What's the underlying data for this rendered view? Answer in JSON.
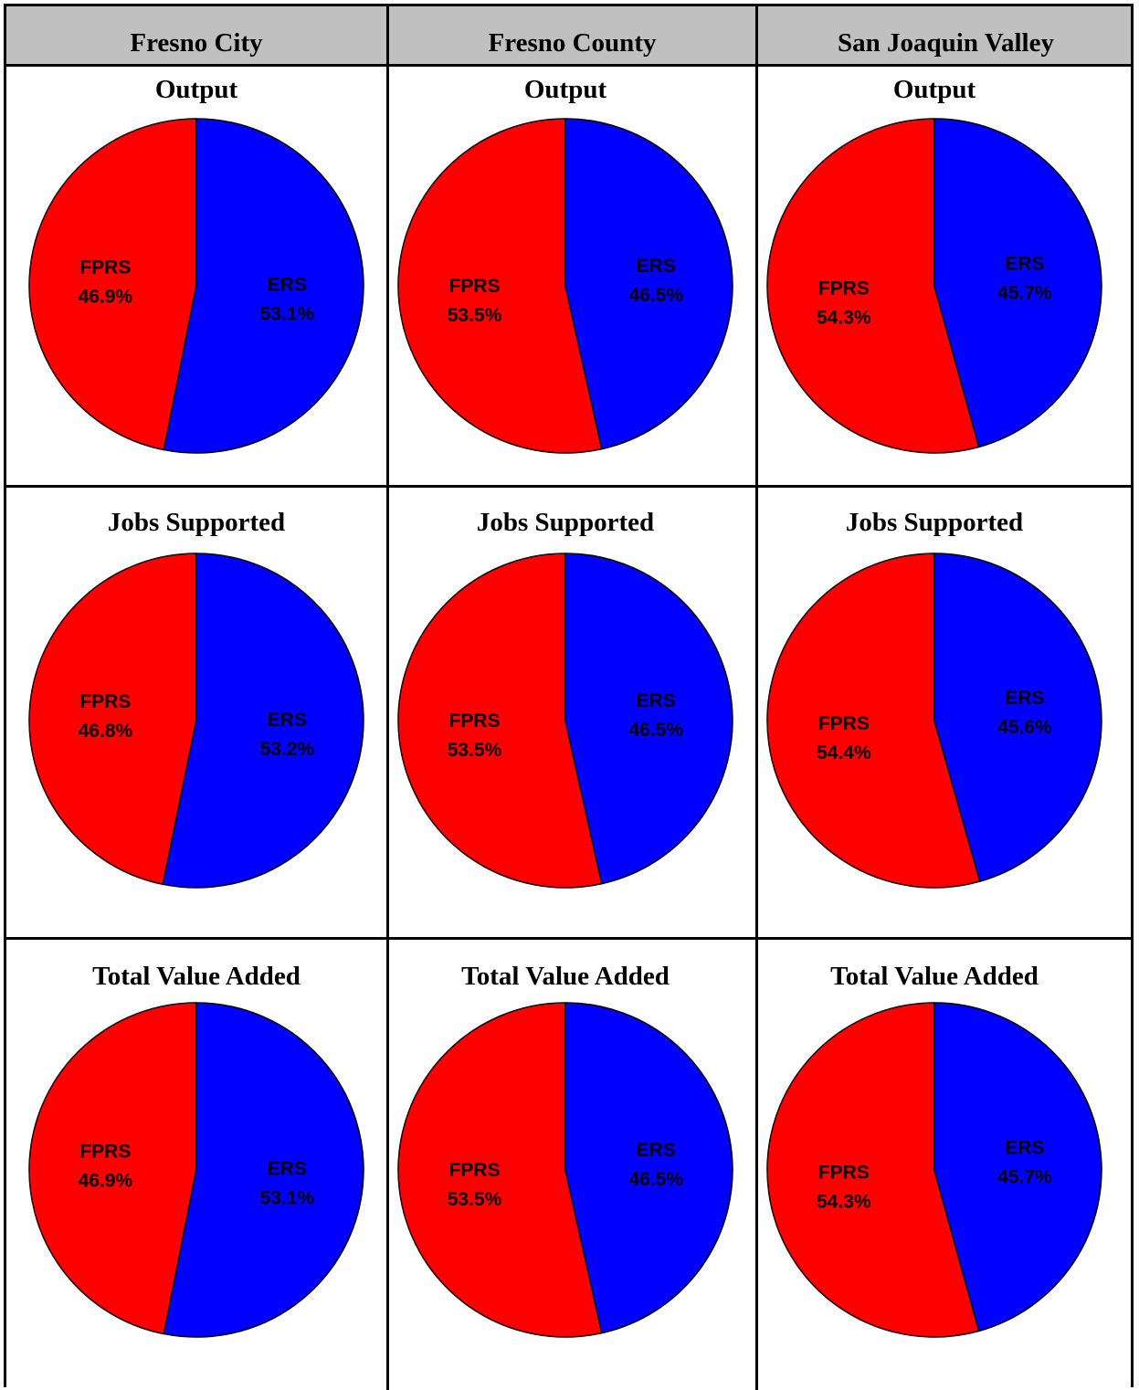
{
  "colors": {
    "FPRS": "#ff0000",
    "ERS": "#0000ff",
    "header_bg": "#c0c0c0"
  },
  "columns": [
    "Fresno City",
    "Fresno County",
    "San Joaquin Valley"
  ],
  "chart_data": [
    {
      "type": "pie",
      "title": "Output",
      "region": "Fresno City",
      "labels": [
        "FPRS",
        "ERS"
      ],
      "values": [
        46.9,
        53.1
      ],
      "value_labels": [
        "46.9%",
        "53.1%"
      ]
    },
    {
      "type": "pie",
      "title": "Output",
      "region": "Fresno County",
      "labels": [
        "FPRS",
        "ERS"
      ],
      "values": [
        53.5,
        46.5
      ],
      "value_labels": [
        "53.5%",
        "46.5%"
      ]
    },
    {
      "type": "pie",
      "title": "Output",
      "region": "San Joaquin Valley",
      "labels": [
        "FPRS",
        "ERS"
      ],
      "values": [
        54.3,
        45.7
      ],
      "value_labels": [
        "54.3%",
        "45.7%"
      ]
    },
    {
      "type": "pie",
      "title": "Jobs Supported",
      "region": "Fresno City",
      "labels": [
        "FPRS",
        "ERS"
      ],
      "values": [
        46.8,
        53.2
      ],
      "value_labels": [
        "46.8%",
        "53.2%"
      ]
    },
    {
      "type": "pie",
      "title": "Jobs Supported",
      "region": "Fresno County",
      "labels": [
        "FPRS",
        "ERS"
      ],
      "values": [
        53.5,
        46.5
      ],
      "value_labels": [
        "53.5%",
        "46.5%"
      ]
    },
    {
      "type": "pie",
      "title": "Jobs Supported",
      "region": "San Joaquin Valley",
      "labels": [
        "FPRS",
        "ERS"
      ],
      "values": [
        54.4,
        45.6
      ],
      "value_labels": [
        "54.4%",
        "45.6%"
      ]
    },
    {
      "type": "pie",
      "title": "Total Value Added",
      "region": "Fresno City",
      "labels": [
        "FPRS",
        "ERS"
      ],
      "values": [
        46.9,
        53.1
      ],
      "value_labels": [
        "46.9%",
        "53.1%"
      ]
    },
    {
      "type": "pie",
      "title": "Total Value Added",
      "region": "Fresno County",
      "labels": [
        "FPRS",
        "ERS"
      ],
      "values": [
        53.5,
        46.5
      ],
      "value_labels": [
        "53.5%",
        "46.5%"
      ]
    },
    {
      "type": "pie",
      "title": "Total Value Added",
      "region": "San Joaquin Valley",
      "labels": [
        "FPRS",
        "ERS"
      ],
      "values": [
        54.3,
        45.7
      ],
      "value_labels": [
        "54.3%",
        "45.7%"
      ]
    }
  ]
}
